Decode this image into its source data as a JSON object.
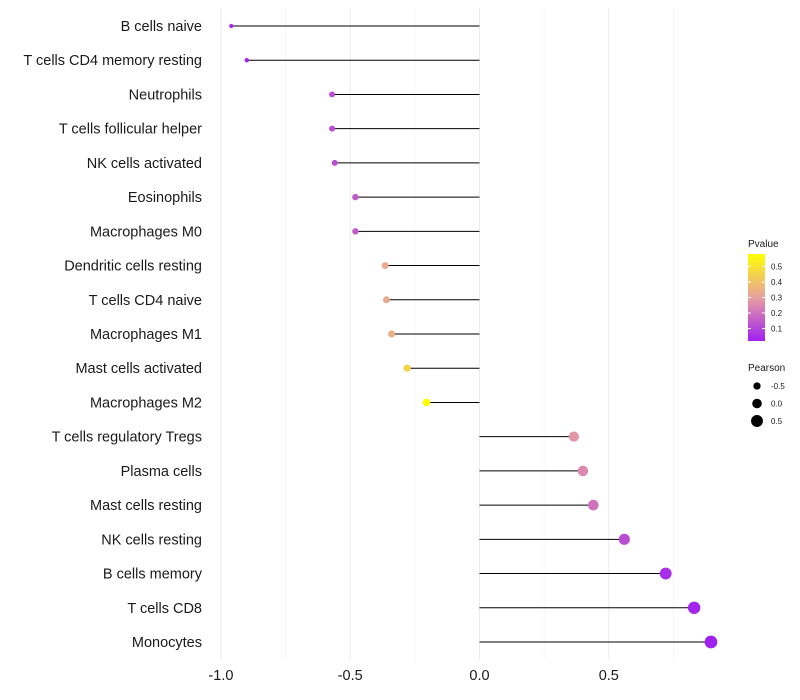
{
  "chart_data": {
    "type": "lollipop",
    "xlim": [
      -1.05,
      0.93
    ],
    "x_ticks": [
      -1.0,
      -0.5,
      0.0,
      0.5
    ],
    "x_tick_labels": [
      "-1.0",
      "-0.5",
      "0.0",
      "0.5"
    ],
    "categories": [
      "B cells naive",
      "T cells CD4 memory resting",
      "Neutrophils",
      "T cells follicular helper",
      "NK cells activated",
      "Eosinophils",
      "Macrophages M0",
      "Dendritic cells resting",
      "T cells CD4 naive",
      "Macrophages M1",
      "Mast cells activated",
      "Macrophages M2",
      "T cells regulatory  Tregs ",
      "Plasma cells",
      "Mast cells resting",
      "NK cells resting",
      "B cells memory",
      "T cells CD8",
      "Monocytes"
    ],
    "pearson": [
      -0.96,
      -0.9,
      -0.57,
      -0.57,
      -0.56,
      -0.48,
      -0.48,
      -0.365,
      -0.36,
      -0.34,
      -0.28,
      -0.205,
      0.365,
      0.4,
      0.44,
      0.56,
      0.72,
      0.83,
      0.895
    ],
    "pvalue": [
      0.04,
      0.03,
      0.12,
      0.12,
      0.12,
      0.15,
      0.15,
      0.33,
      0.33,
      0.35,
      0.45,
      0.58,
      0.28,
      0.25,
      0.2,
      0.12,
      0.05,
      0.03,
      0.02
    ],
    "color_legend": {
      "title": "Pvalue",
      "ticks": [
        0.1,
        0.2,
        0.3,
        0.4,
        0.5
      ],
      "tick_labels": [
        "0.1",
        "0.2",
        "0.3",
        "0.4",
        "0.5"
      ],
      "range": [
        0.02,
        0.58
      ],
      "low_color": "#a020f0",
      "mid_color": "#e8a0a0",
      "high_color": "#ffff00"
    },
    "size_legend": {
      "title": "Pearson",
      "values": [
        -0.5,
        0.0,
        0.5
      ],
      "labels": [
        "-0.5",
        "0.0",
        "0.5"
      ]
    },
    "segment_color": "#000000",
    "grid": true
  }
}
